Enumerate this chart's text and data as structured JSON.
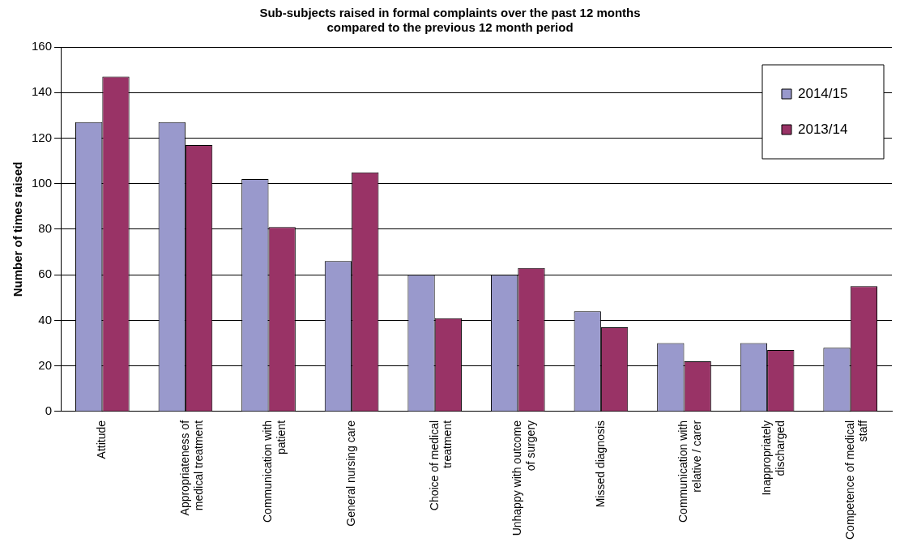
{
  "chart_data": {
    "type": "bar",
    "title": "Sub-subjects raised in formal complaints over the past 12 months\ncompared to the previous 12 month period",
    "ylabel": "Number of times raised",
    "categories": [
      "Attitude",
      "Appropriateness of medical treatment",
      "Communication with patient",
      "General nursing care",
      "Choice of medical treatment",
      "Unhappy with outcome of surgery",
      "Missed diagnosis",
      "Communication with relative / carer",
      "Inappropriately discharged",
      "Competence of medical staff"
    ],
    "series": [
      {
        "name": "2014/15",
        "color": "#9999cc",
        "values": [
          127,
          127,
          102,
          66,
          60,
          60,
          44,
          30,
          30,
          28
        ]
      },
      {
        "name": "2013/14",
        "color": "#993366",
        "values": [
          147,
          117,
          81,
          105,
          41,
          63,
          37,
          22,
          27,
          55
        ]
      }
    ],
    "ylim": [
      0,
      160
    ],
    "yticks": [
      0,
      20,
      40,
      60,
      80,
      100,
      120,
      140,
      160
    ],
    "grid": "y",
    "legend": "top right"
  }
}
